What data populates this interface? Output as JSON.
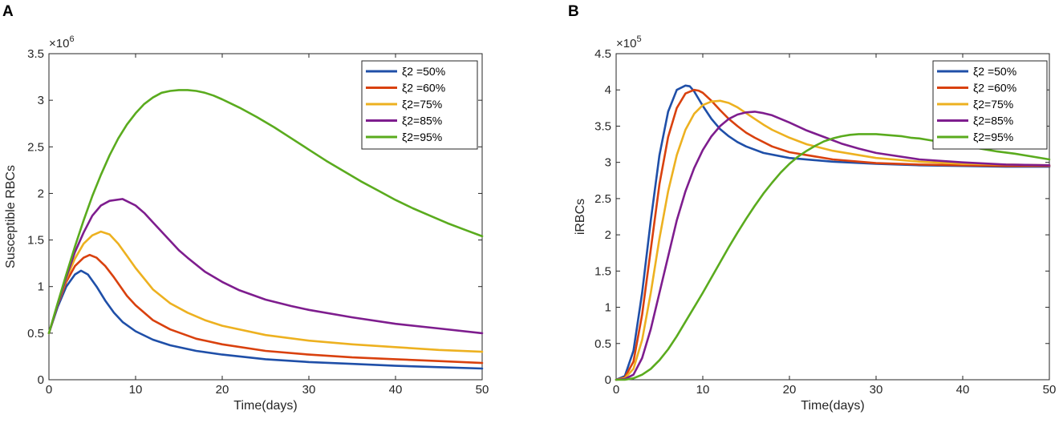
{
  "chart_data": [
    {
      "type": "line",
      "panel_label": "A",
      "title": "",
      "xlabel": "Time(days)",
      "ylabel": "Susceptible RBCs",
      "xlim": [
        0,
        50
      ],
      "ylim": [
        0,
        3.5
      ],
      "xticks": [
        0,
        10,
        20,
        30,
        40,
        50
      ],
      "xtick_labels": [
        "0",
        "10",
        "20",
        "30",
        "40",
        "50"
      ],
      "yticks": [
        0,
        0.5,
        1,
        1.5,
        2,
        2.5,
        3,
        3.5
      ],
      "ytick_labels": [
        "0",
        "0.5",
        "1",
        "1.5",
        "2",
        "2.5",
        "3",
        "3.5"
      ],
      "exponent_label": "×10",
      "exponent_power": "6",
      "grid": false,
      "legend_position": "top-right",
      "series": [
        {
          "name": "ξ2 =50%",
          "color": "#1f4fa8",
          "x": [
            0,
            1,
            2,
            3,
            3.7,
            4.5,
            5.5,
            6.5,
            7.5,
            8.5,
            10,
            12,
            14,
            17,
            20,
            25,
            30,
            35,
            40,
            45,
            50
          ],
          "y": [
            0.5,
            0.78,
            1.0,
            1.13,
            1.17,
            1.13,
            1.0,
            0.85,
            0.72,
            0.62,
            0.52,
            0.43,
            0.37,
            0.31,
            0.27,
            0.22,
            0.19,
            0.17,
            0.15,
            0.135,
            0.12
          ]
        },
        {
          "name": "ξ2 =60%",
          "color": "#d9410e",
          "x": [
            0,
            1,
            2,
            3,
            4,
            4.7,
            5.5,
            6.5,
            7.5,
            9,
            10,
            12,
            14,
            17,
            20,
            25,
            30,
            35,
            40,
            45,
            50
          ],
          "y": [
            0.5,
            0.8,
            1.05,
            1.22,
            1.31,
            1.34,
            1.31,
            1.22,
            1.1,
            0.9,
            0.8,
            0.64,
            0.54,
            0.44,
            0.38,
            0.31,
            0.27,
            0.24,
            0.22,
            0.2,
            0.18
          ]
        },
        {
          "name": "ξ2=75%",
          "color": "#edb120",
          "x": [
            0,
            1,
            2,
            3,
            4,
            5,
            6,
            7,
            8,
            9,
            10,
            12,
            14,
            16,
            18,
            20,
            25,
            30,
            35,
            40,
            45,
            50
          ],
          "y": [
            0.5,
            0.8,
            1.08,
            1.3,
            1.46,
            1.55,
            1.59,
            1.56,
            1.46,
            1.33,
            1.2,
            0.97,
            0.82,
            0.72,
            0.64,
            0.58,
            0.48,
            0.42,
            0.38,
            0.35,
            0.32,
            0.3
          ]
        },
        {
          "name": "ξ2=85%",
          "color": "#7e1d8e",
          "x": [
            0,
            1,
            2,
            3,
            4,
            5,
            6,
            7,
            8.5,
            10,
            11,
            12,
            13,
            14,
            15,
            16,
            18,
            20,
            22,
            25,
            28,
            30,
            35,
            40,
            45,
            50
          ],
          "y": [
            0.5,
            0.8,
            1.1,
            1.37,
            1.58,
            1.76,
            1.87,
            1.92,
            1.94,
            1.87,
            1.79,
            1.69,
            1.59,
            1.49,
            1.39,
            1.31,
            1.16,
            1.05,
            0.96,
            0.86,
            0.79,
            0.75,
            0.67,
            0.6,
            0.55,
            0.5
          ]
        },
        {
          "name": "ξ2=95%",
          "color": "#5aab1e",
          "x": [
            0,
            1,
            2,
            3,
            4,
            5,
            6,
            7,
            8,
            9,
            10,
            11,
            12,
            13,
            14,
            15,
            16,
            17,
            18,
            19,
            20,
            22,
            24,
            26,
            28,
            30,
            32,
            34,
            36,
            38,
            40,
            42,
            44,
            46,
            48,
            50
          ],
          "y": [
            0.5,
            0.82,
            1.13,
            1.43,
            1.71,
            1.97,
            2.2,
            2.41,
            2.59,
            2.74,
            2.86,
            2.96,
            3.03,
            3.08,
            3.1,
            3.11,
            3.11,
            3.1,
            3.08,
            3.05,
            3.01,
            2.92,
            2.82,
            2.71,
            2.59,
            2.47,
            2.35,
            2.24,
            2.13,
            2.03,
            1.93,
            1.84,
            1.76,
            1.68,
            1.61,
            1.54
          ]
        }
      ]
    },
    {
      "type": "line",
      "panel_label": "B",
      "title": "",
      "xlabel": "Time(days)",
      "ylabel": "iRBCs",
      "xlim": [
        0,
        50
      ],
      "ylim": [
        0,
        4.5
      ],
      "xticks": [
        0,
        10,
        20,
        30,
        40,
        50
      ],
      "xtick_labels": [
        "0",
        "10",
        "20",
        "30",
        "40",
        "50"
      ],
      "yticks": [
        0,
        0.5,
        1,
        1.5,
        2,
        2.5,
        3,
        3.5,
        4,
        4.5
      ],
      "ytick_labels": [
        "0",
        "0.5",
        "1",
        "1.5",
        "2",
        "2.5",
        "3",
        "3.5",
        "4",
        "4.5"
      ],
      "exponent_label": "×10",
      "exponent_power": "5",
      "grid": false,
      "legend_position": "top-right",
      "series": [
        {
          "name": "ξ2 =50%",
          "color": "#1f4fa8",
          "x": [
            0,
            1,
            2,
            3,
            4,
            5,
            6,
            7,
            8,
            8.5,
            9,
            10,
            11,
            12,
            13,
            14,
            15,
            17,
            20,
            25,
            30,
            35,
            40,
            45,
            50
          ],
          "y": [
            0,
            0.05,
            0.4,
            1.2,
            2.2,
            3.1,
            3.7,
            4.0,
            4.06,
            4.05,
            3.98,
            3.78,
            3.6,
            3.46,
            3.36,
            3.28,
            3.22,
            3.13,
            3.06,
            3.01,
            2.98,
            2.96,
            2.95,
            2.94,
            2.94
          ]
        },
        {
          "name": "ξ2 =60%",
          "color": "#d9410e",
          "x": [
            0,
            1,
            2,
            3,
            4,
            5,
            6,
            7,
            8,
            9,
            9.5,
            10,
            11,
            12,
            13,
            14,
            15,
            16,
            18,
            20,
            25,
            30,
            35,
            40,
            45,
            50
          ],
          "y": [
            0,
            0.03,
            0.25,
            0.9,
            1.8,
            2.7,
            3.35,
            3.75,
            3.95,
            4.0,
            3.99,
            3.96,
            3.85,
            3.72,
            3.6,
            3.5,
            3.41,
            3.34,
            3.22,
            3.14,
            3.04,
            2.99,
            2.97,
            2.96,
            2.95,
            2.95
          ]
        },
        {
          "name": "ξ2=75%",
          "color": "#edb120",
          "x": [
            0,
            1,
            2,
            3,
            4,
            5,
            6,
            7,
            8,
            9,
            10,
            11,
            12,
            13,
            14,
            15,
            16,
            17,
            18,
            20,
            22,
            25,
            30,
            35,
            40,
            45,
            50
          ],
          "y": [
            0,
            0.02,
            0.15,
            0.55,
            1.2,
            1.95,
            2.6,
            3.1,
            3.45,
            3.67,
            3.79,
            3.84,
            3.85,
            3.82,
            3.76,
            3.68,
            3.6,
            3.52,
            3.45,
            3.34,
            3.25,
            3.16,
            3.06,
            3.01,
            2.98,
            2.97,
            2.96
          ]
        },
        {
          "name": "ξ2=85%",
          "color": "#7e1d8e",
          "x": [
            0,
            1,
            2,
            3,
            4,
            5,
            6,
            7,
            8,
            9,
            10,
            11,
            12,
            13,
            14,
            15,
            16,
            17,
            18,
            19,
            20,
            22,
            24,
            26,
            28,
            30,
            35,
            40,
            45,
            50
          ],
          "y": [
            0,
            0.01,
            0.07,
            0.3,
            0.7,
            1.2,
            1.7,
            2.2,
            2.6,
            2.92,
            3.17,
            3.36,
            3.5,
            3.6,
            3.66,
            3.69,
            3.7,
            3.68,
            3.65,
            3.6,
            3.55,
            3.44,
            3.35,
            3.26,
            3.19,
            3.13,
            3.04,
            3.0,
            2.97,
            2.96
          ]
        },
        {
          "name": "ξ2=95%",
          "color": "#5aab1e",
          "x": [
            0,
            1,
            2,
            3,
            4,
            5,
            6,
            7,
            8,
            9,
            10,
            11,
            12,
            13,
            14,
            15,
            16,
            17,
            18,
            19,
            20,
            21,
            22,
            23,
            24,
            25,
            26,
            27,
            28,
            29,
            30,
            31,
            32,
            33,
            34,
            35,
            36,
            38,
            40,
            42,
            44,
            46,
            48,
            50
          ],
          "y": [
            0,
            0,
            0.02,
            0.07,
            0.15,
            0.27,
            0.42,
            0.6,
            0.8,
            1.0,
            1.2,
            1.41,
            1.62,
            1.83,
            2.03,
            2.22,
            2.4,
            2.57,
            2.72,
            2.86,
            2.98,
            3.08,
            3.16,
            3.23,
            3.29,
            3.33,
            3.36,
            3.38,
            3.39,
            3.39,
            3.39,
            3.38,
            3.37,
            3.36,
            3.34,
            3.33,
            3.31,
            3.27,
            3.23,
            3.19,
            3.15,
            3.12,
            3.08,
            3.04
          ]
        }
      ]
    }
  ]
}
